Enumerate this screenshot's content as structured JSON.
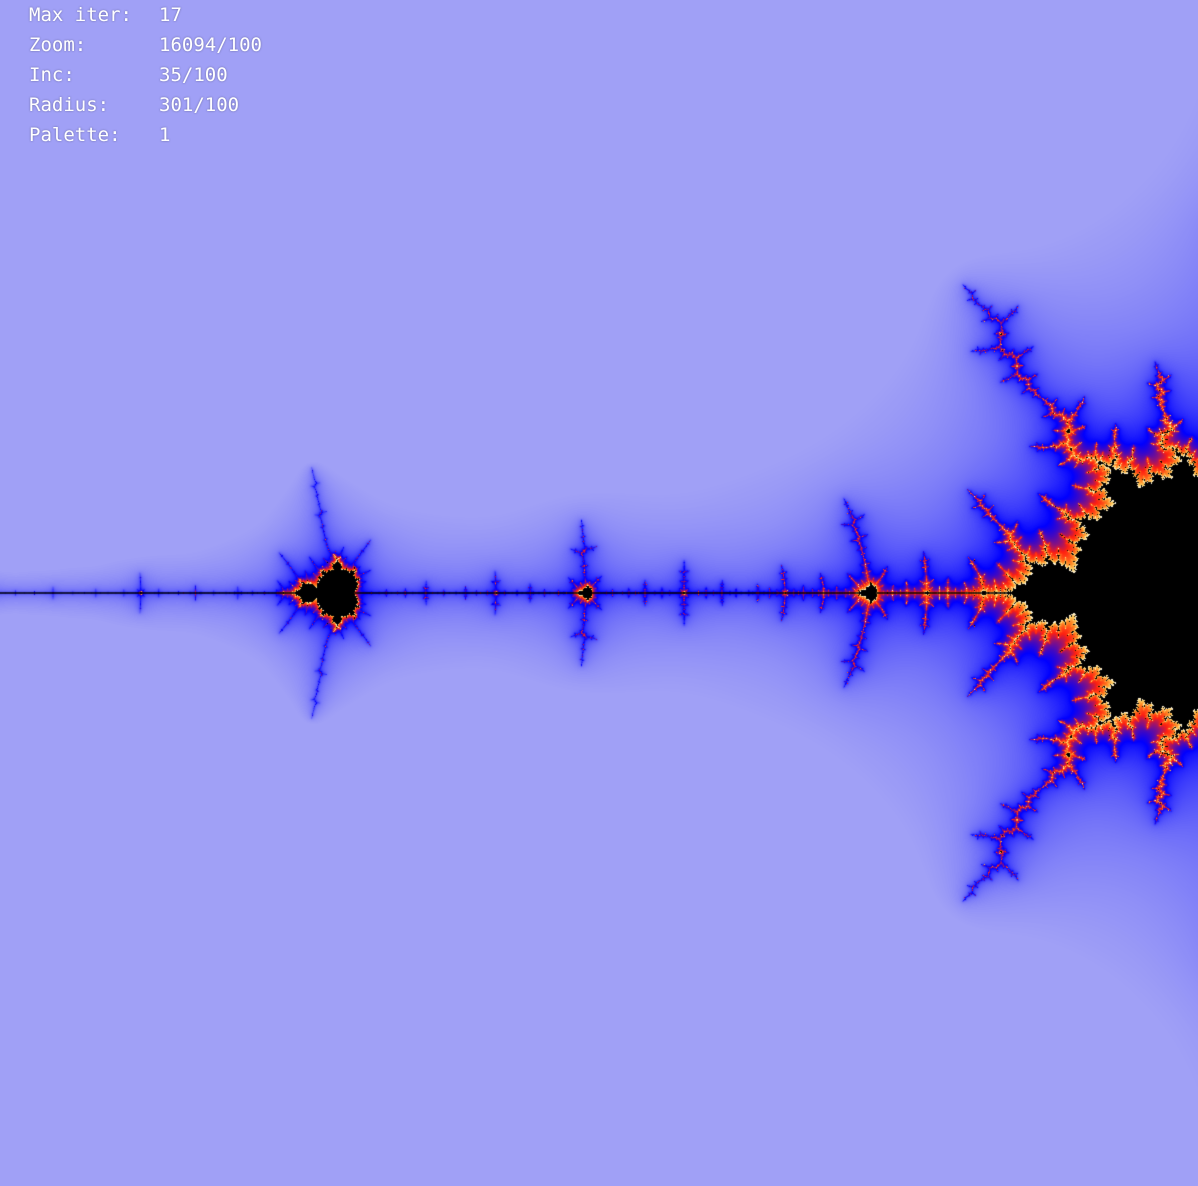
{
  "hud": {
    "rows": [
      {
        "label": "Max iter:",
        "value": "17"
      },
      {
        "label": "Zoom:",
        "value": "16094/100"
      },
      {
        "label": "Inc:",
        "value": "35/100"
      },
      {
        "label": "Radius:",
        "value": "301/100"
      },
      {
        "label": "Palette:",
        "value": "1"
      }
    ]
  },
  "colors": {
    "background": "#a0a0f6",
    "interior": "#000000",
    "palette": [
      "#ffffff",
      "#ffd060",
      "#ff8020",
      "#ff2010",
      "#0000ff",
      "#a0a0f6"
    ]
  }
}
